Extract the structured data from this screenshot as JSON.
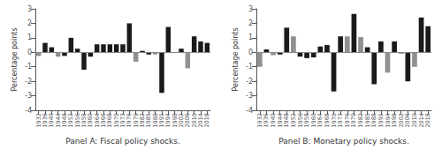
{
  "chart_data": [
    {
      "type": "bar",
      "categories": [
        "1932",
        "1936",
        "1940",
        "1944",
        "1948",
        "1952",
        "1956",
        "1958",
        "1960",
        "1964",
        "1966",
        "1968",
        "1970",
        "1973",
        "1976",
        "1979",
        "1982",
        "1985",
        "1988",
        "1991",
        "1994",
        "1998",
        "2002",
        "2006",
        "2010",
        "2014",
        "2018"
      ],
      "values": [
        -0.25,
        0.65,
        0.35,
        -0.3,
        -0.25,
        1.0,
        0.25,
        -1.2,
        -0.3,
        0.55,
        0.55,
        0.55,
        0.55,
        0.55,
        2.0,
        -0.65,
        0.1,
        -0.15,
        -0.15,
        -2.8,
        1.75,
        -0.05,
        0.25,
        -1.1,
        1.1,
        0.75,
        0.65
      ],
      "colors": [
        "#909090",
        "#1a1a1a",
        "#1a1a1a",
        "#909090",
        "#1a1a1a",
        "#1a1a1a",
        "#1a1a1a",
        "#1a1a1a",
        "#1a1a1a",
        "#1a1a1a",
        "#1a1a1a",
        "#1a1a1a",
        "#1a1a1a",
        "#1a1a1a",
        "#1a1a1a",
        "#909090",
        "#1a1a1a",
        "#1a1a1a",
        "#909090",
        "#1a1a1a",
        "#1a1a1a",
        "#909090",
        "#1a1a1a",
        "#909090",
        "#1a1a1a",
        "#1a1a1a",
        "#1a1a1a"
      ],
      "xlabel": "Panel A: Fiscal policy shocks.",
      "ylabel": "Percentage points",
      "ylim": [
        -4,
        3
      ],
      "yticks": [
        -4,
        -3,
        -2,
        -1,
        0,
        1,
        2,
        3
      ],
      "grid": false
    },
    {
      "type": "bar",
      "categories": [
        "1932",
        "1936",
        "1940",
        "1944",
        "1948",
        "1952",
        "1956",
        "1958",
        "1960",
        "1964",
        "1968",
        "1970",
        "1973",
        "1976",
        "1979",
        "1982",
        "1985",
        "1988",
        "1991",
        "1994",
        "1998",
        "2002",
        "2006",
        "2010",
        "2014",
        "2018"
      ],
      "values": [
        -1.0,
        0.2,
        -0.2,
        -0.15,
        1.7,
        1.1,
        -0.3,
        -0.4,
        -0.35,
        0.4,
        0.5,
        -2.7,
        1.1,
        1.1,
        2.65,
        1.05,
        0.35,
        -2.2,
        0.75,
        -1.4,
        0.75,
        -0.1,
        -2.0,
        -1.0,
        2.4,
        1.8
      ],
      "colors": [
        "#909090",
        "#1a1a1a",
        "#909090",
        "#1a1a1a",
        "#1a1a1a",
        "#909090",
        "#1a1a1a",
        "#1a1a1a",
        "#1a1a1a",
        "#1a1a1a",
        "#1a1a1a",
        "#1a1a1a",
        "#1a1a1a",
        "#909090",
        "#1a1a1a",
        "#909090",
        "#1a1a1a",
        "#1a1a1a",
        "#1a1a1a",
        "#909090",
        "#1a1a1a",
        "#909090",
        "#1a1a1a",
        "#909090",
        "#1a1a1a",
        "#1a1a1a"
      ],
      "xlabel": "Panel B: Monetary policy shocks.",
      "ylabel": "Percentage points",
      "ylim": [
        -4,
        3
      ],
      "yticks": [
        -4,
        -3,
        -2,
        -1,
        0,
        1,
        2,
        3
      ],
      "grid": false
    }
  ]
}
